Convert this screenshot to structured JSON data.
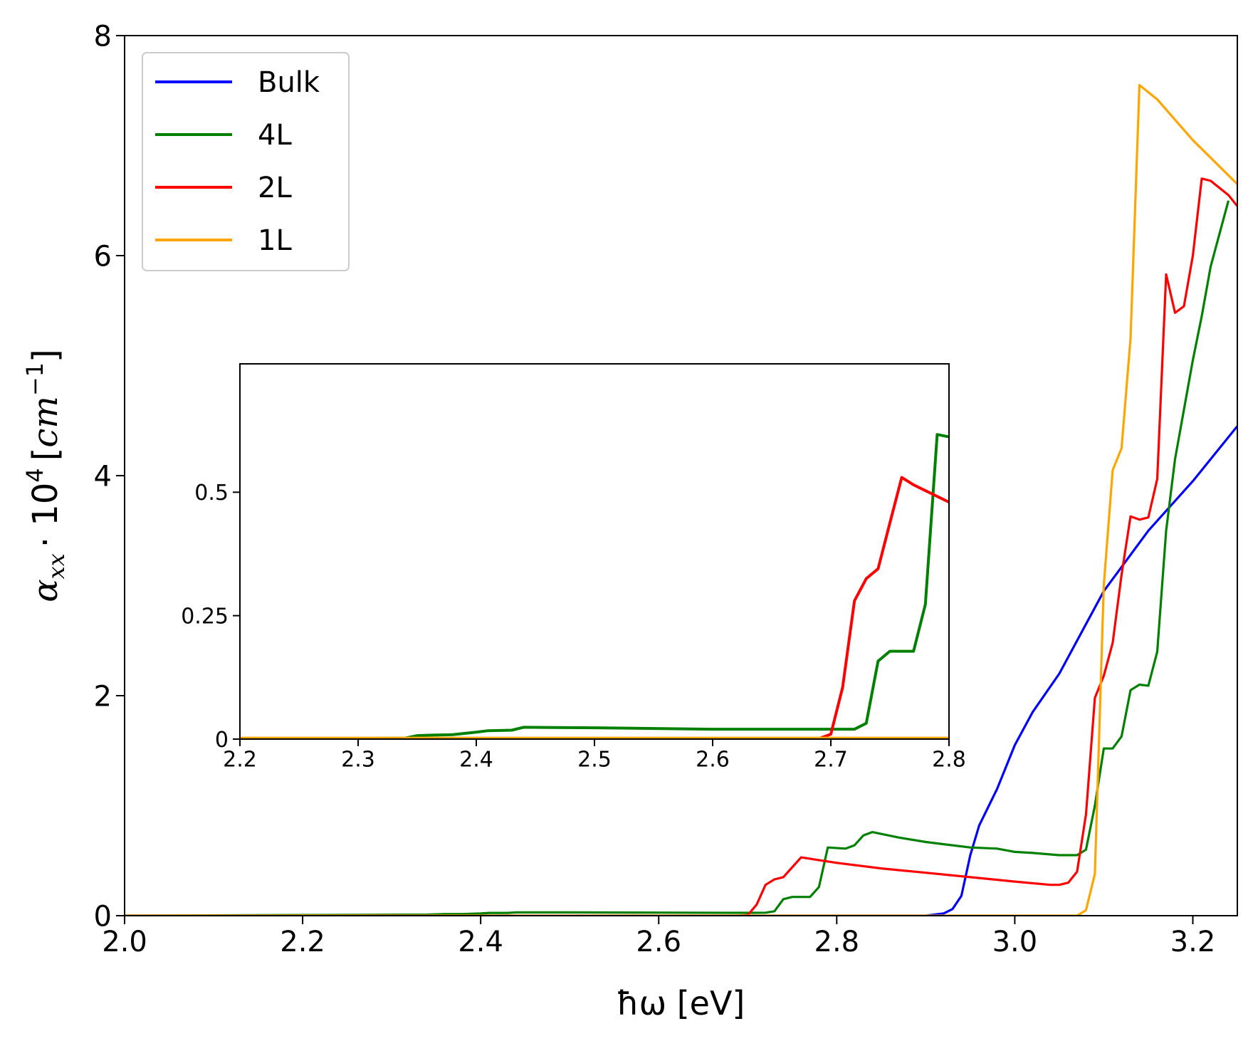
{
  "chart_data": [
    {
      "type": "line",
      "role": "main",
      "xlabel": "ħω [eV]",
      "ylabel": "α_xx · 10^4 [cm^-1]",
      "ylabel_parts": {
        "alpha": "α",
        "sub": "xx",
        "dot": "· 10",
        "exp": "4",
        "unit_open": "[",
        "unit": "cm",
        "unit_exp": "−1",
        "unit_close": "]"
      },
      "xlim": [
        2.0,
        3.25
      ],
      "ylim": [
        0,
        8
      ],
      "xticks": [
        2.0,
        2.2,
        2.4,
        2.6,
        2.8,
        3.0,
        3.2
      ],
      "xtick_labels": [
        "2.0",
        "2.2",
        "2.4",
        "2.6",
        "2.8",
        "3.0",
        "3.2"
      ],
      "yticks": [
        0,
        2,
        4,
        6,
        8
      ],
      "ytick_labels": [
        "0",
        "2",
        "4",
        "6",
        "8"
      ],
      "legend_position": "top-left",
      "series": [
        {
          "name": "Bulk",
          "color": "#0000ff",
          "x": [
            2.0,
            2.9,
            2.92,
            2.93,
            2.94,
            2.95,
            2.96,
            2.98,
            3.0,
            3.02,
            3.05,
            3.1,
            3.15,
            3.2,
            3.25
          ],
          "y": [
            0,
            0,
            0.02,
            0.06,
            0.18,
            0.55,
            0.82,
            1.15,
            1.55,
            1.85,
            2.2,
            2.95,
            3.5,
            3.95,
            4.45
          ]
        },
        {
          "name": "4L",
          "color": "#008000",
          "x": [
            2.0,
            2.34,
            2.36,
            2.38,
            2.4,
            2.41,
            2.43,
            2.44,
            2.5,
            2.6,
            2.7,
            2.72,
            2.73,
            2.74,
            2.75,
            2.77,
            2.78,
            2.79,
            2.81,
            2.82,
            2.83,
            2.84,
            2.87,
            2.9,
            2.92,
            2.95,
            2.98,
            3.0,
            3.02,
            3.05,
            3.07,
            3.08,
            3.09,
            3.1,
            3.11,
            3.12,
            3.13,
            3.14,
            3.15,
            3.16,
            3.17,
            3.18,
            3.19,
            3.2,
            3.21,
            3.22,
            3.24
          ],
          "y": [
            0,
            0.01,
            0.015,
            0.015,
            0.02,
            0.025,
            0.025,
            0.03,
            0.03,
            0.028,
            0.026,
            0.027,
            0.04,
            0.15,
            0.17,
            0.17,
            0.26,
            0.62,
            0.61,
            0.64,
            0.73,
            0.76,
            0.71,
            0.67,
            0.65,
            0.62,
            0.61,
            0.58,
            0.57,
            0.55,
            0.55,
            0.6,
            1.0,
            1.52,
            1.52,
            1.63,
            2.05,
            2.1,
            2.09,
            2.4,
            3.5,
            4.15,
            4.6,
            5.05,
            5.45,
            5.9,
            6.5
          ]
        },
        {
          "name": "2L",
          "color": "#ff0000",
          "x": [
            2.0,
            2.69,
            2.7,
            2.71,
            2.72,
            2.73,
            2.74,
            2.75,
            2.76,
            2.8,
            2.85,
            2.9,
            2.95,
            3.0,
            3.04,
            3.05,
            3.06,
            3.07,
            3.08,
            3.09,
            3.1,
            3.11,
            3.12,
            3.13,
            3.14,
            3.15,
            3.16,
            3.17,
            3.18,
            3.19,
            3.2,
            3.21,
            3.22,
            3.24,
            3.25
          ],
          "y": [
            0,
            0,
            0.005,
            0.1,
            0.28,
            0.33,
            0.35,
            0.44,
            0.53,
            0.48,
            0.43,
            0.39,
            0.35,
            0.31,
            0.28,
            0.28,
            0.3,
            0.4,
            0.92,
            1.98,
            2.18,
            2.48,
            3.1,
            3.63,
            3.6,
            3.62,
            3.97,
            5.83,
            5.48,
            5.54,
            6.0,
            6.7,
            6.68,
            6.55,
            6.45
          ]
        },
        {
          "name": "1L",
          "color": "#ffa500",
          "x": [
            2.0,
            3.07,
            3.08,
            3.09,
            3.1,
            3.11,
            3.12,
            3.13,
            3.14,
            3.16,
            3.2,
            3.25
          ],
          "y": [
            0,
            0,
            0.05,
            0.38,
            3.0,
            4.05,
            4.25,
            5.25,
            7.55,
            7.42,
            7.05,
            6.65
          ]
        }
      ]
    },
    {
      "type": "line",
      "role": "inset",
      "xlim": [
        2.2,
        2.8
      ],
      "ylim": [
        0,
        0.76
      ],
      "xticks": [
        2.2,
        2.3,
        2.4,
        2.5,
        2.6,
        2.7,
        2.8
      ],
      "xtick_labels": [
        "2.2",
        "2.3",
        "2.4",
        "2.5",
        "2.6",
        "2.7",
        "2.8"
      ],
      "yticks": [
        0,
        0.25,
        0.5
      ],
      "ytick_labels": [
        "0",
        "0.25",
        "0.5"
      ],
      "series": [
        {
          "name": "Bulk",
          "color": "#0000ff",
          "x": [
            2.2,
            2.8
          ],
          "y": [
            0,
            0
          ]
        },
        {
          "name": "4L",
          "color": "#008000",
          "x": [
            2.2,
            2.34,
            2.35,
            2.36,
            2.38,
            2.4,
            2.41,
            2.43,
            2.44,
            2.5,
            2.6,
            2.72,
            2.73,
            2.74,
            2.75,
            2.77,
            2.78,
            2.79,
            2.8
          ],
          "y": [
            0,
            0.002,
            0.007,
            0.008,
            0.009,
            0.014,
            0.017,
            0.018,
            0.024,
            0.023,
            0.02,
            0.02,
            0.032,
            0.158,
            0.178,
            0.178,
            0.273,
            0.617,
            0.612
          ]
        },
        {
          "name": "2L",
          "color": "#ff0000",
          "x": [
            2.2,
            2.69,
            2.7,
            2.71,
            2.72,
            2.73,
            2.74,
            2.75,
            2.76,
            2.77,
            2.8
          ],
          "y": [
            0,
            0.001,
            0.01,
            0.105,
            0.28,
            0.325,
            0.345,
            0.438,
            0.53,
            0.515,
            0.48
          ]
        },
        {
          "name": "1L",
          "color": "#ffa500",
          "x": [
            2.2,
            2.8
          ],
          "y": [
            0.002,
            0.002
          ]
        }
      ]
    }
  ]
}
